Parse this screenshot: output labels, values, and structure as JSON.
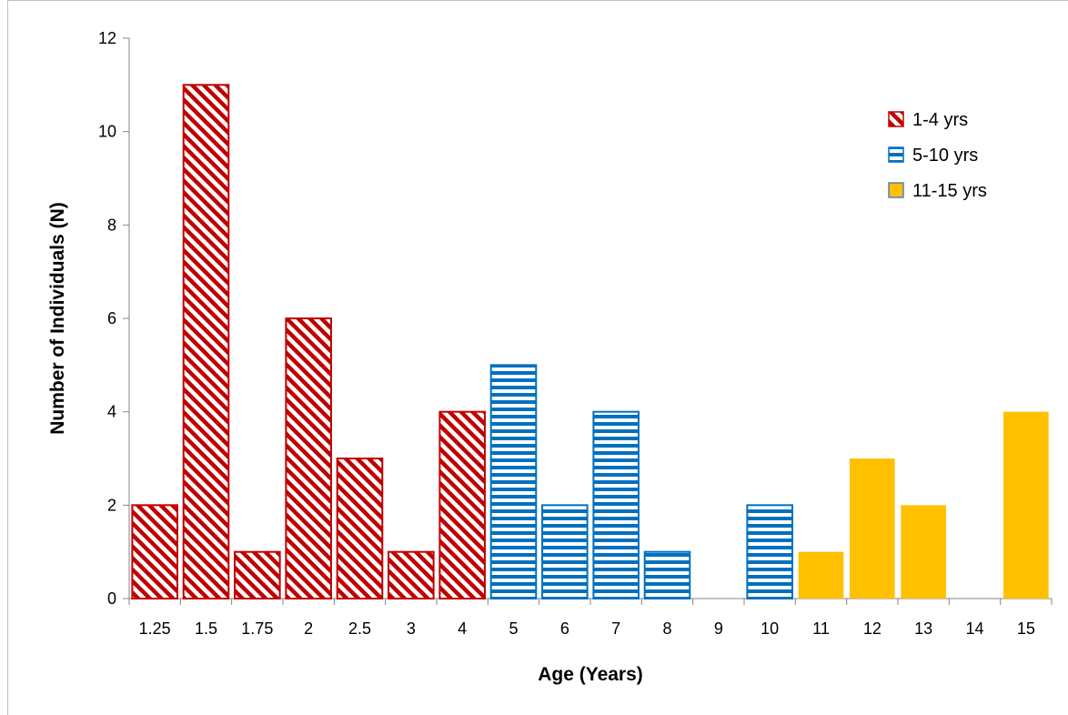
{
  "chart_data": {
    "type": "bar",
    "title": "",
    "xlabel": "Age (Years)",
    "ylabel": "Number of Individuals (N)",
    "ylim": [
      0,
      12
    ],
    "yticks": [
      "0",
      "2",
      "4",
      "6",
      "8",
      "10",
      "12"
    ],
    "grid": false,
    "legend_position": "top-right",
    "categories": [
      "1.25",
      "1.5",
      "1.75",
      "2",
      "2.5",
      "3",
      "4",
      "5",
      "6",
      "7",
      "8",
      "9",
      "10",
      "11",
      "12",
      "13",
      "14",
      "15"
    ],
    "series": [
      {
        "name": "1-4 yrs",
        "color": "#c00000",
        "pattern": "diagonal-stripes",
        "values": [
          2,
          11,
          1,
          6,
          3,
          1,
          4,
          null,
          null,
          null,
          null,
          null,
          null,
          null,
          null,
          null,
          null,
          null
        ]
      },
      {
        "name": "5-10 yrs",
        "color": "#0070c0",
        "pattern": "horizontal-stripes",
        "values": [
          null,
          null,
          null,
          null,
          null,
          null,
          null,
          5,
          2,
          4,
          1,
          0,
          2,
          null,
          null,
          null,
          null,
          null
        ]
      },
      {
        "name": "11-15 yrs",
        "color": "#ffc000",
        "pattern": "solid",
        "values": [
          null,
          null,
          null,
          null,
          null,
          null,
          null,
          null,
          null,
          null,
          null,
          null,
          null,
          1,
          3,
          2,
          0,
          4
        ]
      }
    ]
  }
}
